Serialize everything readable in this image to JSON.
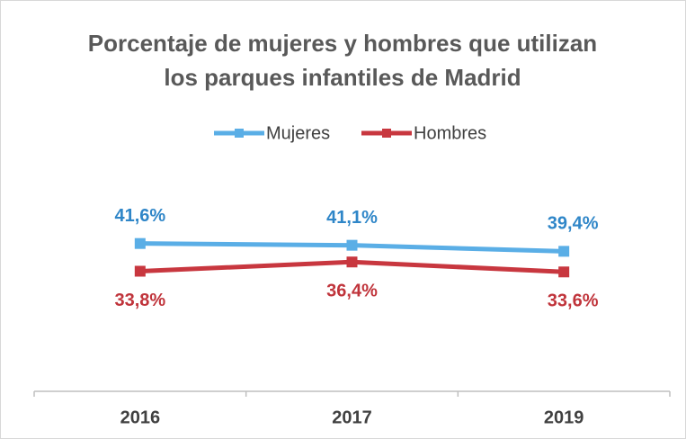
{
  "chart_data": {
    "type": "line",
    "title": [
      "Porcentaje de mujeres y hombres que utilizan",
      "los parques infantiles de Madrid"
    ],
    "categories": [
      "2016",
      "2017",
      "2019"
    ],
    "series": [
      {
        "name": "Mujeres",
        "color": "#5aaee6",
        "label_color": "#2f86c8",
        "values": [
          41.6,
          41.1,
          39.4
        ],
        "value_labels": [
          "41,6%",
          "41,1%",
          "39,4%"
        ]
      },
      {
        "name": "Hombres",
        "color": "#c8373f",
        "label_color": "#c0343b",
        "values": [
          33.8,
          36.4,
          33.6
        ],
        "value_labels": [
          "33,8%",
          "36,4%",
          "33,6%"
        ]
      }
    ],
    "legend": "top"
  }
}
